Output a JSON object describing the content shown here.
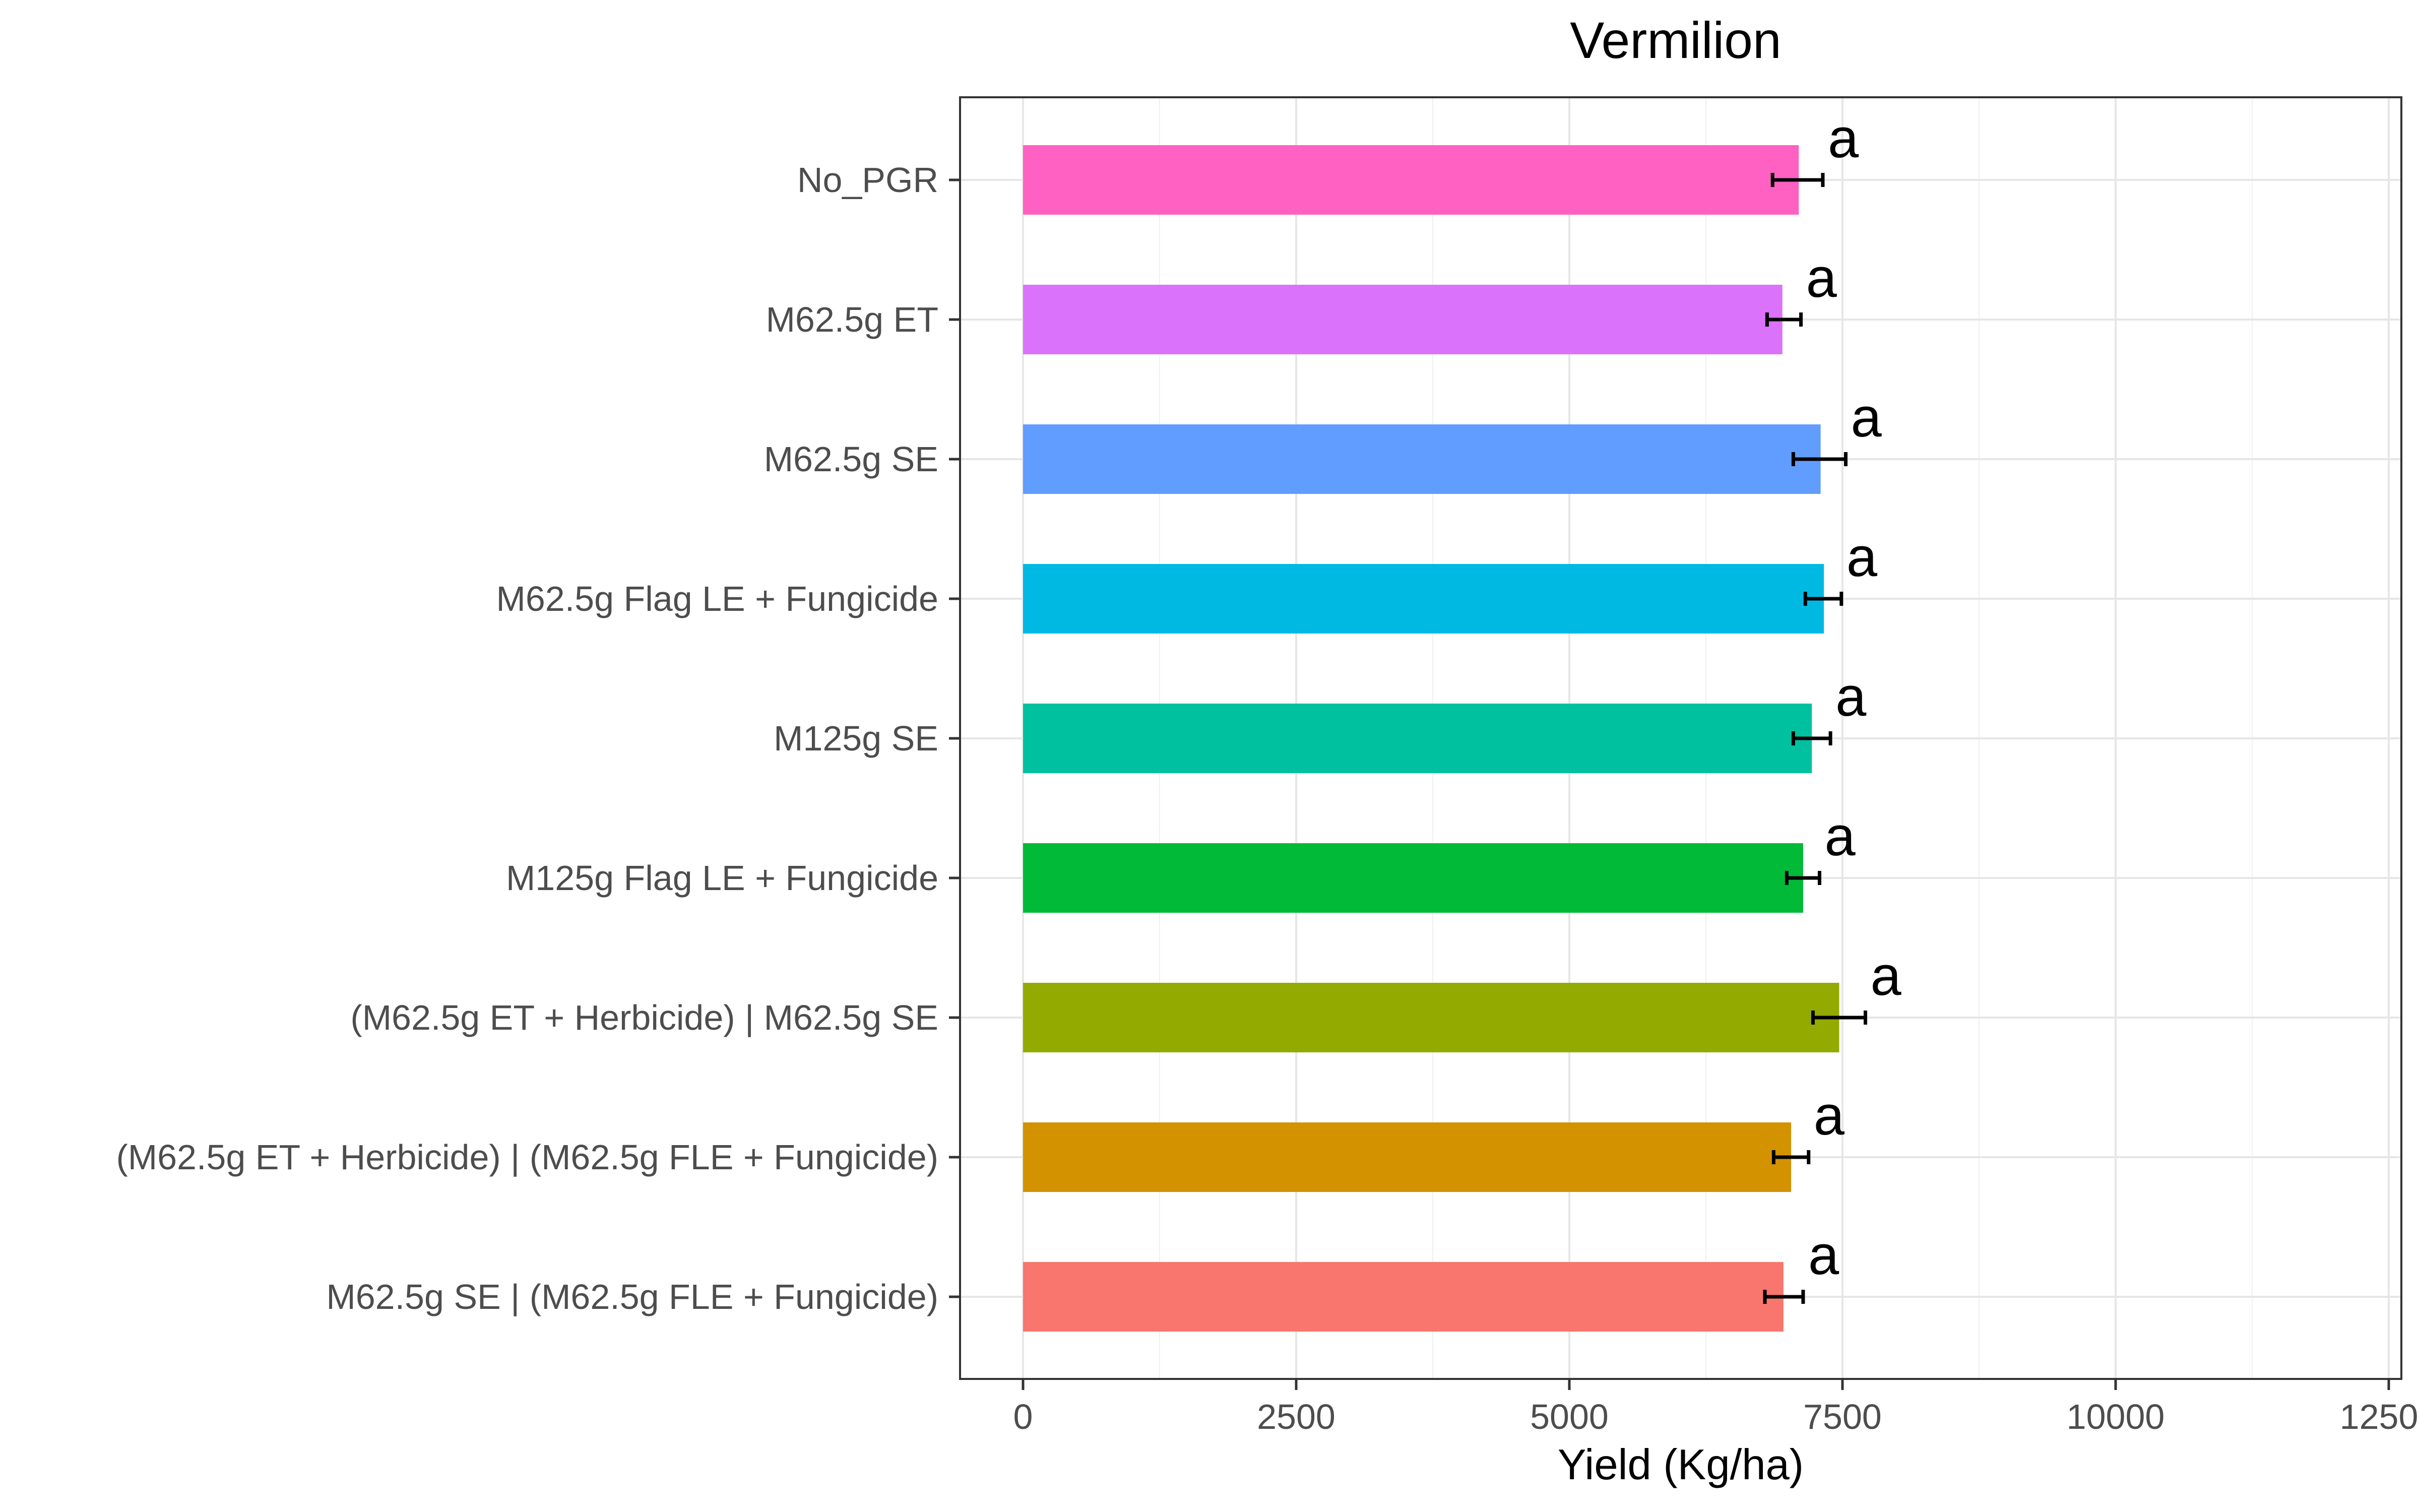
{
  "chart_data": {
    "type": "bar",
    "orientation": "horizontal",
    "title": "Vermilion",
    "xlabel": "Yield (Kg/ha)",
    "ylabel": "",
    "xlim": [
      0,
      12500
    ],
    "x_ticks": [
      0,
      2500,
      5000,
      7500,
      10000,
      12500
    ],
    "x_tick_labels": [
      "0",
      "2500",
      "5000",
      "7500",
      "10000",
      "12500"
    ],
    "grid": true,
    "legend": "none",
    "categories": [
      "No_PGR",
      "M62.5g ET",
      "M62.5g SE",
      "M62.5g Flag LE + Fungicide",
      "M125g SE",
      "M125g Flag LE + Fungicide",
      "(M62.5g ET + Herbicide) | M62.5g SE",
      "(M62.5g ET + Herbicide) | (M62.5g FLE + Fungicide)",
      "M62.5g SE | (M62.5g FLE + Fungicide)"
    ],
    "values": [
      7100,
      6950,
      7300,
      7330,
      7220,
      7140,
      7470,
      7030,
      6960
    ],
    "error_low": [
      6860,
      6810,
      7050,
      7160,
      7050,
      6990,
      7230,
      6870,
      6790
    ],
    "error_high": [
      7320,
      7120,
      7530,
      7490,
      7390,
      7290,
      7710,
      7190,
      7140
    ],
    "significance_labels": [
      "a",
      "a",
      "a",
      "a",
      "a",
      "a",
      "a",
      "a",
      "a"
    ],
    "colors": [
      "#FF61C3",
      "#DB72FB",
      "#619CFF",
      "#00B9E3",
      "#00C19F",
      "#00BA38",
      "#93AA00",
      "#D39200",
      "#F8766D"
    ]
  }
}
